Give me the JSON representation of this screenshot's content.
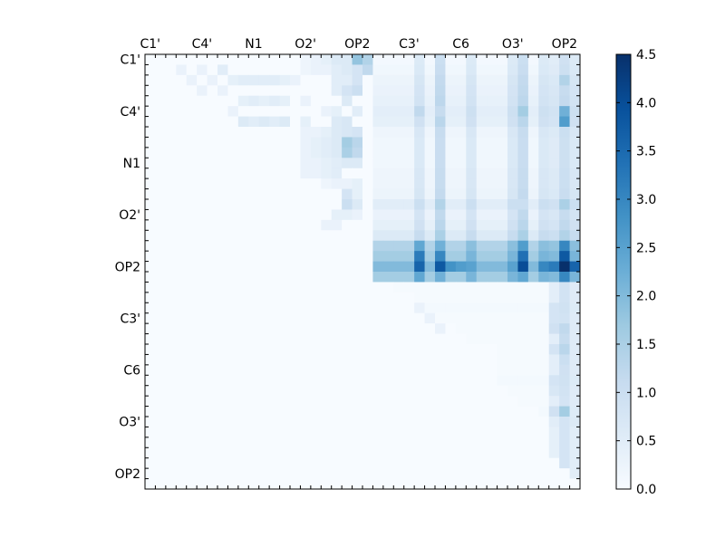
{
  "chart_data": {
    "type": "heatmap",
    "title": "",
    "xlabel": "",
    "ylabel": "",
    "size": 42,
    "x_tick_labels": [
      "C1'",
      "C4'",
      "N1",
      "O2'",
      "OP2",
      "C3'",
      "C6",
      "O3'",
      "OP2"
    ],
    "y_tick_labels": [
      "C1'",
      "C4'",
      "N1",
      "O2'",
      "OP2",
      "C3'",
      "C6",
      "O3'",
      "OP2"
    ],
    "x_tick_positions": [
      0.5,
      5.5,
      10.5,
      15.5,
      20.5,
      25.5,
      30.5,
      35.5,
      40.5
    ],
    "y_tick_positions": [
      0.5,
      5.5,
      10.5,
      15.5,
      20.5,
      25.5,
      30.5,
      35.5,
      40.5
    ],
    "colorbar": {
      "vmin": 0.0,
      "vmax": 4.5,
      "tick_values": [
        0.0,
        0.5,
        1.0,
        1.5,
        2.0,
        2.5,
        3.0,
        3.5,
        4.0,
        4.5
      ],
      "tick_labels": [
        "0.0",
        "0.5",
        "1.0",
        "1.5",
        "2.0",
        "2.5",
        "3.0",
        "3.5",
        "4.0",
        "4.5"
      ],
      "colormap": [
        "#f7fbff",
        "#deebf7",
        "#c6dbef",
        "#9ecae1",
        "#6baed6",
        "#4292c6",
        "#2171b5",
        "#08519c",
        "#08306b"
      ]
    },
    "cells": [
      [
        1,
        3,
        0.3
      ],
      [
        1,
        5,
        0.3
      ],
      [
        1,
        7,
        0.5
      ],
      [
        0,
        15,
        0.2
      ],
      [
        0,
        16,
        0.3
      ],
      [
        0,
        17,
        0.4
      ],
      [
        0,
        18,
        0.6
      ],
      [
        0,
        19,
        0.6
      ],
      [
        0,
        20,
        1.8
      ],
      [
        0,
        21,
        1.4
      ],
      [
        1,
        15,
        0.2
      ],
      [
        1,
        16,
        0.3
      ],
      [
        1,
        17,
        0.3
      ],
      [
        1,
        18,
        0.5
      ],
      [
        1,
        19,
        0.6
      ],
      [
        1,
        20,
        0.8
      ],
      [
        1,
        21,
        1.2
      ],
      [
        2,
        4,
        0.3
      ],
      [
        2,
        6,
        0.3
      ],
      [
        2,
        8,
        0.4
      ],
      [
        2,
        9,
        0.5
      ],
      [
        2,
        10,
        0.5
      ],
      [
        2,
        11,
        0.5
      ],
      [
        2,
        12,
        0.5
      ],
      [
        2,
        13,
        0.4
      ],
      [
        2,
        14,
        0.3
      ],
      [
        2,
        18,
        0.5
      ],
      [
        2,
        19,
        0.5
      ],
      [
        2,
        20,
        0.8
      ],
      [
        3,
        5,
        0.3
      ],
      [
        3,
        7,
        0.3
      ],
      [
        3,
        18,
        0.5
      ],
      [
        3,
        19,
        0.8
      ],
      [
        3,
        20,
        1.0
      ],
      [
        4,
        9,
        0.4
      ],
      [
        4,
        10,
        0.5
      ],
      [
        4,
        11,
        0.4
      ],
      [
        4,
        12,
        0.5
      ],
      [
        4,
        13,
        0.4
      ],
      [
        4,
        15,
        0.3
      ],
      [
        4,
        19,
        0.6
      ],
      [
        5,
        8,
        0.3
      ],
      [
        5,
        17,
        0.3
      ],
      [
        5,
        18,
        0.4
      ],
      [
        5,
        20,
        0.5
      ],
      [
        6,
        9,
        0.6
      ],
      [
        6,
        10,
        0.5
      ],
      [
        6,
        11,
        0.6
      ],
      [
        6,
        12,
        0.5
      ],
      [
        6,
        13,
        0.6
      ],
      [
        6,
        15,
        0.4
      ],
      [
        6,
        18,
        0.6
      ],
      [
        6,
        19,
        0.7
      ],
      [
        7,
        15,
        0.3
      ],
      [
        7,
        16,
        0.3
      ],
      [
        7,
        17,
        0.4
      ],
      [
        7,
        18,
        0.6
      ],
      [
        7,
        19,
        0.7
      ],
      [
        7,
        20,
        0.8
      ],
      [
        8,
        15,
        0.3
      ],
      [
        8,
        16,
        0.4
      ],
      [
        8,
        17,
        0.5
      ],
      [
        8,
        18,
        0.6
      ],
      [
        8,
        19,
        1.6
      ],
      [
        8,
        20,
        1.3
      ],
      [
        9,
        15,
        0.3
      ],
      [
        9,
        16,
        0.4
      ],
      [
        9,
        17,
        0.5
      ],
      [
        9,
        18,
        0.6
      ],
      [
        9,
        19,
        1.5
      ],
      [
        9,
        20,
        1.2
      ],
      [
        10,
        15,
        0.3
      ],
      [
        10,
        16,
        0.3
      ],
      [
        10,
        17,
        0.4
      ],
      [
        10,
        18,
        0.5
      ],
      [
        10,
        19,
        0.6
      ],
      [
        10,
        20,
        0.6
      ],
      [
        11,
        15,
        0.3
      ],
      [
        11,
        16,
        0.3
      ],
      [
        11,
        17,
        0.4
      ],
      [
        11,
        18,
        0.5
      ],
      [
        12,
        17,
        0.2
      ],
      [
        12,
        18,
        0.3
      ],
      [
        12,
        19,
        0.3
      ],
      [
        12,
        20,
        0.4
      ],
      [
        13,
        19,
        0.8
      ],
      [
        13,
        20,
        0.4
      ],
      [
        14,
        19,
        1.0
      ],
      [
        14,
        20,
        0.6
      ],
      [
        15,
        18,
        0.4
      ],
      [
        15,
        19,
        0.4
      ],
      [
        15,
        20,
        0.3
      ],
      [
        16,
        17,
        0.3
      ],
      [
        16,
        18,
        0.3
      ],
      [
        14,
        40,
        1.5
      ],
      [
        15,
        41,
        0.6
      ]
    ],
    "rows": [
      {
        "index": 0,
        "range": [
          22,
          41
        ],
        "value": 0.1
      },
      {
        "index": 1,
        "range": [
          22,
          41
        ],
        "value": 0.15
      },
      {
        "index": 2,
        "range": [
          22,
          41
        ],
        "value": 0.25
      },
      {
        "index": 3,
        "range": [
          22,
          41
        ],
        "value": 0.3
      },
      {
        "index": 4,
        "range": [
          22,
          41
        ],
        "value": 0.35
      },
      {
        "index": 5,
        "range": [
          22,
          41
        ],
        "value": 0.45
      },
      {
        "index": 6,
        "range": [
          22,
          41
        ],
        "value": 0.4
      },
      {
        "index": 7,
        "range": [
          22,
          41
        ],
        "value": 0.2
      },
      {
        "index": 8,
        "range": [
          22,
          41
        ],
        "value": 0.15
      },
      {
        "index": 9,
        "range": [
          22,
          41
        ],
        "value": 0.15
      },
      {
        "index": 10,
        "range": [
          22,
          41
        ],
        "value": 0.15
      },
      {
        "index": 11,
        "range": [
          22,
          41
        ],
        "value": 0.2
      },
      {
        "index": 12,
        "range": [
          22,
          41
        ],
        "value": 0.2
      },
      {
        "index": 13,
        "range": [
          22,
          41
        ],
        "value": 0.25
      },
      {
        "index": 14,
        "range": [
          22,
          41
        ],
        "value": 0.5
      },
      {
        "index": 15,
        "range": [
          22,
          41
        ],
        "value": 0.3
      },
      {
        "index": 16,
        "range": [
          22,
          41
        ],
        "value": 0.4
      },
      {
        "index": 17,
        "range": [
          22,
          41
        ],
        "value": 0.6
      },
      {
        "index": 18,
        "range": [
          22,
          41
        ],
        "value": 1.4
      },
      {
        "index": 19,
        "range": [
          22,
          41
        ],
        "value": 1.6
      },
      {
        "index": 20,
        "range": [
          22,
          41
        ],
        "value": 2.0
      },
      {
        "index": 21,
        "range": [
          22,
          41
        ],
        "value": 1.6
      },
      {
        "index": 22,
        "range": [
          24,
          41
        ],
        "value": 0.05
      },
      {
        "index": 23,
        "range": [
          26,
          41
        ],
        "value": 0.05
      },
      {
        "index": 24,
        "range": [
          26,
          41
        ],
        "value": 0.08
      },
      {
        "index": 25,
        "range": [
          28,
          41
        ],
        "value": 0.05
      },
      {
        "index": 26,
        "range": [
          30,
          41
        ],
        "value": 0.05
      },
      {
        "index": 27,
        "range": [
          31,
          41
        ],
        "value": 0.05
      },
      {
        "index": 28,
        "range": [
          34,
          41
        ],
        "value": 0.05
      },
      {
        "index": 29,
        "range": [
          34,
          41
        ],
        "value": 0.05
      },
      {
        "index": 30,
        "range": [
          34,
          41
        ],
        "value": 0.05
      },
      {
        "index": 31,
        "range": [
          34,
          41
        ],
        "value": 0.08
      },
      {
        "index": 32,
        "range": [
          35,
          41
        ],
        "value": 0.05
      },
      {
        "index": 33,
        "range": [
          36,
          41
        ],
        "value": 0.05
      },
      {
        "index": 34,
        "range": [
          38,
          41
        ],
        "value": 0.08
      },
      {
        "index": 35,
        "range": [
          39,
          41
        ],
        "value": 0.1
      }
    ],
    "columns": [
      {
        "index": 26,
        "range": [
          0,
          21
        ],
        "value": 0.5
      },
      {
        "index": 28,
        "range": [
          0,
          21
        ],
        "value": 0.9
      },
      {
        "index": 31,
        "range": [
          0,
          21
        ],
        "value": 0.5
      },
      {
        "index": 35,
        "range": [
          0,
          21
        ],
        "value": 0.5
      },
      {
        "index": 36,
        "range": [
          0,
          21
        ],
        "value": 0.9
      },
      {
        "index": 38,
        "range": [
          0,
          21
        ],
        "value": 0.5
      },
      {
        "index": 39,
        "range": [
          0,
          41
        ],
        "value": 0.4
      },
      {
        "index": 40,
        "range": [
          0,
          41
        ],
        "value": 0.8
      },
      {
        "index": 41,
        "range": [
          0,
          41
        ],
        "value": 0.5
      }
    ],
    "peaks": [
      [
        5,
        26,
        1.2
      ],
      [
        5,
        28,
        1.1
      ],
      [
        5,
        36,
        1.6
      ],
      [
        5,
        40,
        2.2
      ],
      [
        6,
        40,
        2.6
      ],
      [
        2,
        40,
        1.4
      ],
      [
        14,
        36,
        1.0
      ],
      [
        18,
        26,
        2.4
      ],
      [
        18,
        28,
        2.2
      ],
      [
        18,
        36,
        2.6
      ],
      [
        18,
        40,
        3.0
      ],
      [
        19,
        26,
        3.2
      ],
      [
        19,
        28,
        3.0
      ],
      [
        19,
        36,
        3.4
      ],
      [
        19,
        40,
        3.8
      ],
      [
        20,
        26,
        3.6
      ],
      [
        20,
        28,
        3.8
      ],
      [
        20,
        29,
        2.8
      ],
      [
        20,
        30,
        2.6
      ],
      [
        20,
        36,
        4.0
      ],
      [
        20,
        38,
        3.0
      ],
      [
        20,
        39,
        3.2
      ],
      [
        20,
        40,
        4.5
      ],
      [
        20,
        41,
        3.6
      ],
      [
        21,
        26,
        2.4
      ],
      [
        21,
        28,
        2.2
      ],
      [
        21,
        36,
        2.4
      ],
      [
        21,
        40,
        3.0
      ],
      [
        24,
        26,
        0.3
      ],
      [
        25,
        27,
        0.3
      ],
      [
        26,
        28,
        0.3
      ],
      [
        24,
        39,
        0.8
      ],
      [
        25,
        39,
        0.8
      ],
      [
        26,
        39,
        0.9
      ],
      [
        26,
        40,
        1.2
      ],
      [
        27,
        40,
        1.1
      ],
      [
        28,
        40,
        1.3
      ],
      [
        28,
        39,
        0.8
      ],
      [
        29,
        40,
        1.0
      ],
      [
        30,
        40,
        0.9
      ],
      [
        31,
        39,
        0.8
      ],
      [
        32,
        39,
        0.7
      ],
      [
        33,
        40,
        0.8
      ],
      [
        34,
        40,
        1.6
      ],
      [
        34,
        39,
        0.9
      ],
      [
        35,
        40,
        0.8
      ]
    ]
  }
}
